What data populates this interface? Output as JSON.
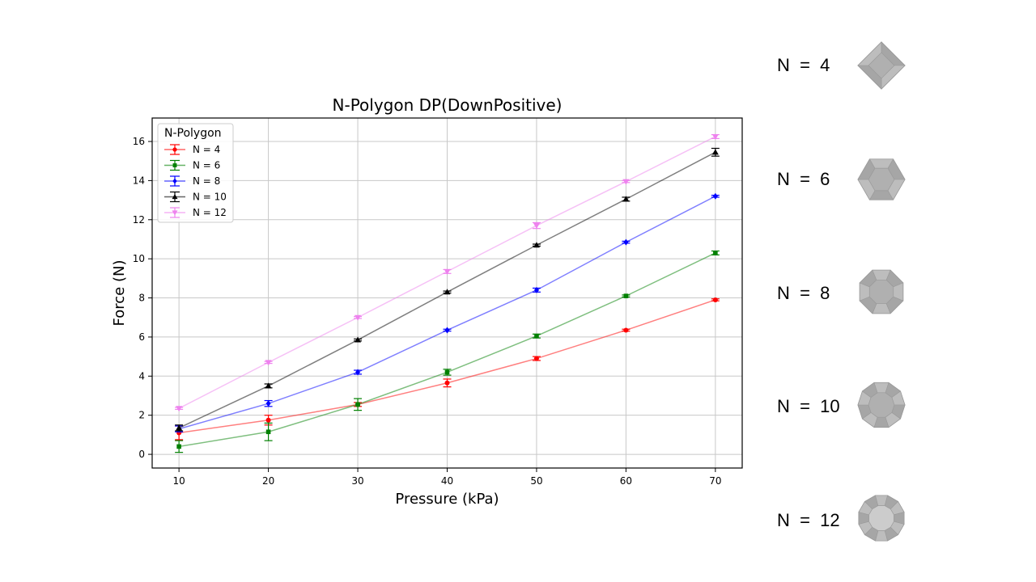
{
  "chart_data": {
    "type": "line",
    "title": "N-Polygon DP(DownPositive)",
    "xlabel": "Pressure (kPa)",
    "ylabel": "Force (N)",
    "x": [
      10,
      20,
      30,
      40,
      50,
      60,
      70
    ],
    "xlim": [
      7,
      73
    ],
    "ylim": [
      -0.7,
      17.2
    ],
    "xticks": [
      10,
      20,
      30,
      40,
      50,
      60,
      70
    ],
    "yticks": [
      0,
      2,
      4,
      6,
      8,
      10,
      12,
      14,
      16
    ],
    "grid": true,
    "legend": {
      "title": "N-Polygon",
      "position": "top-left"
    },
    "series": [
      {
        "name": "N = 4",
        "color": "#ff0000",
        "marker": "circle",
        "values": [
          1.1,
          1.75,
          2.55,
          3.65,
          4.9,
          6.35,
          7.9
        ],
        "errors": [
          0.35,
          0.25,
          0.1,
          0.2,
          0.1,
          0.05,
          0.05
        ]
      },
      {
        "name": "N = 6",
        "color": "#008000",
        "marker": "square",
        "values": [
          0.4,
          1.15,
          2.55,
          4.2,
          6.05,
          8.1,
          10.3
        ],
        "errors": [
          0.3,
          0.45,
          0.3,
          0.15,
          0.1,
          0.05,
          0.1
        ]
      },
      {
        "name": "N = 8",
        "color": "#0000ff",
        "marker": "diamond",
        "values": [
          1.3,
          2.6,
          4.2,
          6.35,
          8.4,
          10.85,
          13.2
        ],
        "errors": [
          0.15,
          0.15,
          0.1,
          0.05,
          0.1,
          0.05,
          0.05
        ]
      },
      {
        "name": "N = 10",
        "color": "#000000",
        "marker": "triangle-up",
        "values": [
          1.35,
          3.5,
          5.85,
          8.3,
          10.7,
          13.05,
          15.45
        ],
        "errors": [
          0.15,
          0.1,
          0.05,
          0.05,
          0.05,
          0.1,
          0.2
        ]
      },
      {
        "name": "N = 12",
        "color": "#ee82ee",
        "marker": "triangle-down",
        "values": [
          2.35,
          4.7,
          7.0,
          9.35,
          11.7,
          13.95,
          16.25
        ],
        "errors": [
          0.05,
          0.05,
          0.05,
          0.1,
          0.15,
          0.05,
          0.1
        ]
      }
    ]
  },
  "shapes": [
    {
      "label": "N  =  4",
      "sides": 4,
      "fill": "#b0b0b0"
    },
    {
      "label": "N  =  6",
      "sides": 6,
      "fill": "#b0b0b0"
    },
    {
      "label": "N  =  8",
      "sides": 8,
      "fill": "#b0b0b0"
    },
    {
      "label": "N  =  10",
      "sides": 10,
      "fill": "#b0b0b0"
    },
    {
      "label": "N  =  12",
      "sides": 12,
      "fill": "#cccccc"
    }
  ]
}
